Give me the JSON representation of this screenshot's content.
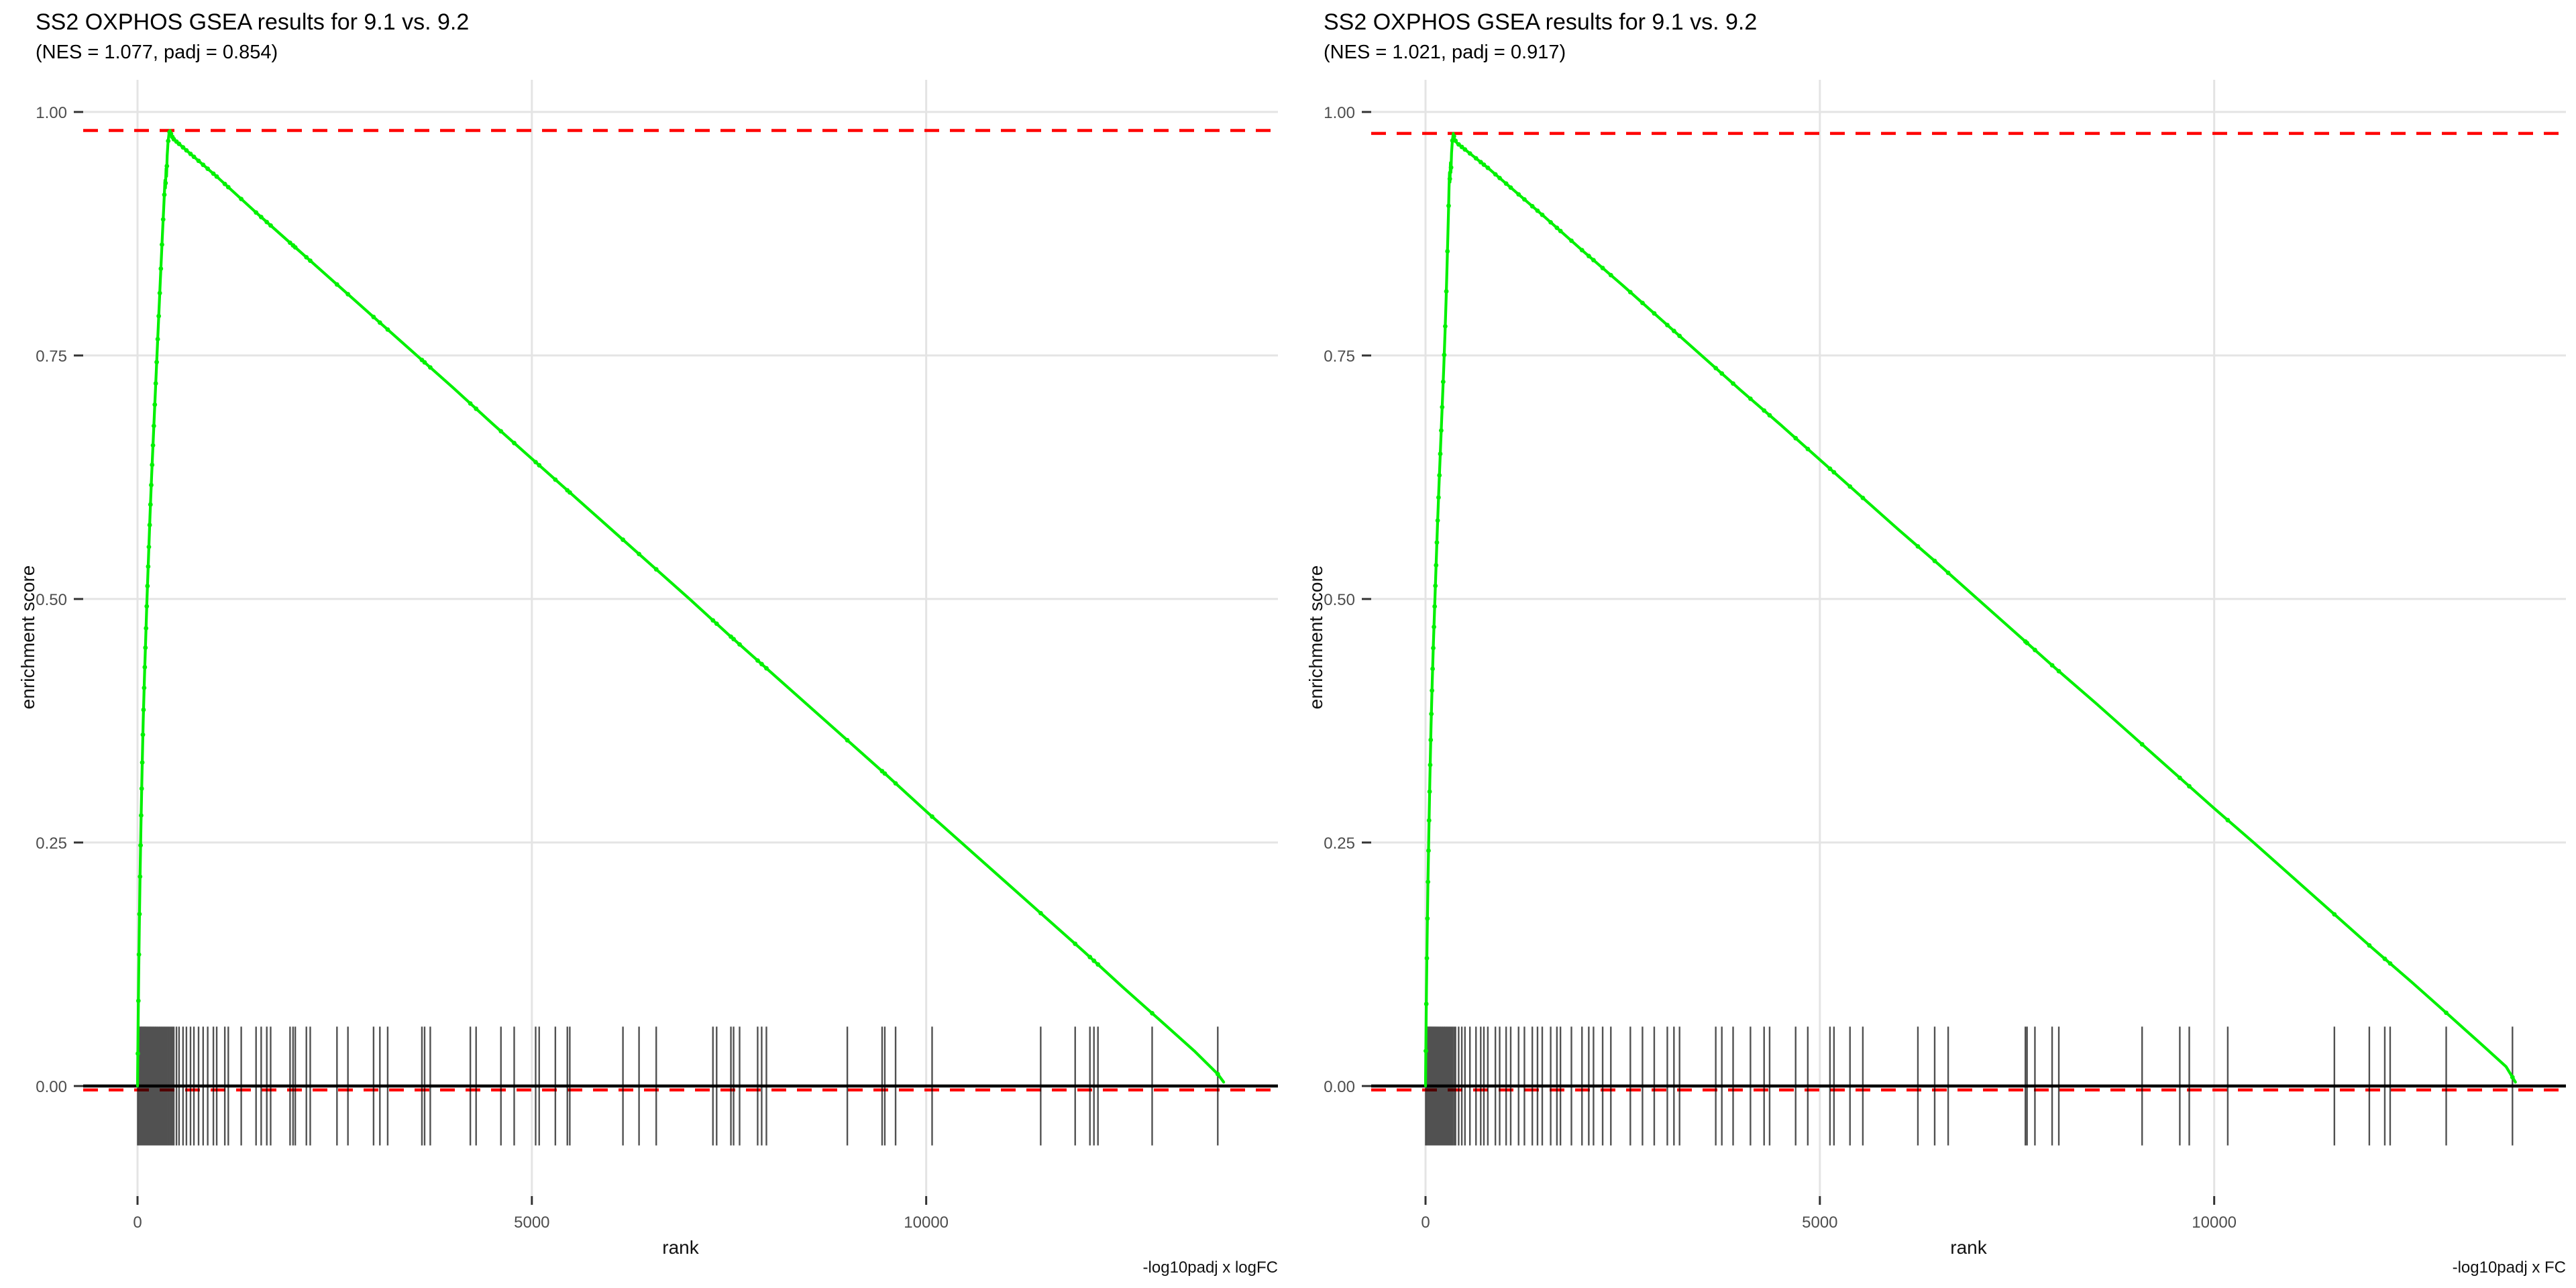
{
  "panels": [
    {
      "title": "SS2 OXPHOS GSEA results for 9.1 vs. 9.2",
      "subtitle": "(NES = 1.077, padj = 0.854)",
      "xlabel": "rank",
      "ylabel": "enrichment score",
      "caption": "-log10padj x logFC"
    },
    {
      "title": "SS2 OXPHOS GSEA results for 9.1 vs. 9.2",
      "subtitle": "(NES = 1.021, padj = 0.917)",
      "xlabel": "rank",
      "ylabel": "enrichment score",
      "caption": "-log10padj x FC"
    }
  ],
  "colors": {
    "curve": "#00F000",
    "dashed_line": "#FF0000",
    "zero_line": "#000000",
    "grid": "#E4E4E4",
    "axis_tick": "#333333",
    "tick_label": "#4D4D4D",
    "rug": "#000000"
  },
  "chart_data": [
    {
      "type": "line",
      "title": "SS2 OXPHOS GSEA results for 9.1 vs. 9.2",
      "subtitle": "(NES = 1.077, padj = 0.854)",
      "caption": "-log10padj x logFC",
      "xlabel": "rank",
      "ylabel": "enrichment score",
      "NES": 1.077,
      "padj": 0.854,
      "x_ticks": [
        0,
        5000,
        10000
      ],
      "y_ticks": [
        0,
        0.25,
        0.5,
        0.75,
        1
      ],
      "xlim": [
        -689,
        14460
      ],
      "ylim": [
        -0.113,
        1.033
      ],
      "grid": "major-only",
      "legend": "none",
      "es_max_line": 0.981,
      "es_min_line": -0.004,
      "zero_line": 0,
      "rug_half_height": 0.061,
      "curve": [
        [
          0,
          0
        ],
        [
          6,
          0.05
        ],
        [
          14,
          0.11
        ],
        [
          22,
          0.16
        ],
        [
          32,
          0.215
        ],
        [
          44,
          0.27
        ],
        [
          58,
          0.325
        ],
        [
          72,
          0.375
        ],
        [
          88,
          0.42
        ],
        [
          104,
          0.46
        ],
        [
          120,
          0.5
        ],
        [
          138,
          0.54
        ],
        [
          158,
          0.585
        ],
        [
          178,
          0.625
        ],
        [
          200,
          0.665
        ],
        [
          222,
          0.705
        ],
        [
          244,
          0.745
        ],
        [
          266,
          0.785
        ],
        [
          288,
          0.825
        ],
        [
          305,
          0.855
        ],
        [
          318,
          0.878
        ],
        [
          330,
          0.898
        ],
        [
          340,
          0.915
        ],
        [
          348,
          0.93
        ],
        [
          354,
          0.922
        ],
        [
          362,
          0.942
        ],
        [
          368,
          0.934
        ],
        [
          376,
          0.955
        ],
        [
          386,
          0.968
        ],
        [
          398,
          0.977
        ],
        [
          412,
          0.981
        ],
        [
          430,
          0.976
        ],
        [
          460,
          0.972
        ],
        [
          600,
          0.962
        ],
        [
          800,
          0.948
        ],
        [
          1000,
          0.934
        ],
        [
          1500,
          0.897
        ],
        [
          2000,
          0.861
        ],
        [
          2500,
          0.825
        ],
        [
          3000,
          0.789
        ],
        [
          3500,
          0.753
        ],
        [
          4000,
          0.717
        ],
        [
          4500,
          0.68
        ],
        [
          5000,
          0.644
        ],
        [
          5500,
          0.608
        ],
        [
          6000,
          0.572
        ],
        [
          6500,
          0.536
        ],
        [
          7000,
          0.5
        ],
        [
          7500,
          0.463
        ],
        [
          8000,
          0.427
        ],
        [
          8500,
          0.391
        ],
        [
          9000,
          0.355
        ],
        [
          9500,
          0.319
        ],
        [
          10000,
          0.282
        ],
        [
          10500,
          0.246
        ],
        [
          11000,
          0.21
        ],
        [
          11500,
          0.174
        ],
        [
          12000,
          0.138
        ],
        [
          12500,
          0.101
        ],
        [
          13000,
          0.065
        ],
        [
          13400,
          0.036
        ],
        [
          13700,
          0.012
        ],
        [
          13772,
          0.004
        ]
      ],
      "gene_ranks": [
        4,
        11,
        18,
        25,
        32,
        39,
        46,
        53,
        60,
        68,
        76,
        84,
        92,
        100,
        108,
        117,
        126,
        135,
        144,
        154,
        164,
        174,
        185,
        196,
        207,
        219,
        231,
        243,
        256,
        269,
        282,
        296,
        310,
        325,
        340,
        356,
        372,
        389,
        406,
        424,
        442,
        460,
        494,
        527,
        577,
        620,
        672,
        715,
        774,
        832,
        890,
        962,
        1004,
        1107,
        1151,
        1315,
        1503,
        1568,
        1639,
        1688,
        1934,
        1972,
        2000,
        2141,
        2190,
        2529,
        2668,
        2993,
        3073,
        3172,
        3606,
        3640,
        3712,
        4220,
        4293,
        4608,
        4776,
        5048,
        5093,
        5298,
        5450,
        5481,
        6155,
        6359,
        6577,
        7296,
        7343,
        7524,
        7558,
        7634,
        7863,
        7914,
        7974,
        9000,
        9441,
        9475,
        9612,
        10075,
        11452,
        11889,
        12076,
        12127,
        12178,
        12865,
        13697
      ]
    },
    {
      "type": "line",
      "title": "SS2 OXPHOS GSEA results for 9.1 vs. 9.2",
      "subtitle": "(NES = 1.021, padj = 0.917)",
      "caption": "-log10padj x FC",
      "xlabel": "rank",
      "ylabel": "enrichment score",
      "NES": 1.021,
      "padj": 0.917,
      "x_ticks": [
        0,
        5000,
        10000
      ],
      "y_ticks": [
        0,
        0.25,
        0.5,
        0.75,
        1
      ],
      "xlim": [
        -689,
        14460
      ],
      "ylim": [
        -0.113,
        1.033
      ],
      "grid": "major-only",
      "legend": "none",
      "es_max_line": 0.978,
      "es_min_line": -0.004,
      "zero_line": 0,
      "rug_half_height": 0.061,
      "curve": [
        [
          0,
          0
        ],
        [
          5,
          0.045
        ],
        [
          12,
          0.1
        ],
        [
          20,
          0.15
        ],
        [
          30,
          0.205
        ],
        [
          42,
          0.26
        ],
        [
          55,
          0.315
        ],
        [
          70,
          0.37
        ],
        [
          85,
          0.415
        ],
        [
          100,
          0.455
        ],
        [
          115,
          0.49
        ],
        [
          132,
          0.53
        ],
        [
          150,
          0.572
        ],
        [
          170,
          0.615
        ],
        [
          190,
          0.655
        ],
        [
          210,
          0.695
        ],
        [
          230,
          0.735
        ],
        [
          248,
          0.775
        ],
        [
          262,
          0.81
        ],
        [
          274,
          0.845
        ],
        [
          284,
          0.875
        ],
        [
          292,
          0.9
        ],
        [
          298,
          0.922
        ],
        [
          304,
          0.938
        ],
        [
          310,
          0.928
        ],
        [
          316,
          0.948
        ],
        [
          322,
          0.938
        ],
        [
          330,
          0.958
        ],
        [
          340,
          0.97
        ],
        [
          352,
          0.978
        ],
        [
          368,
          0.972
        ],
        [
          400,
          0.968
        ],
        [
          600,
          0.955
        ],
        [
          800,
          0.942
        ],
        [
          1000,
          0.928
        ],
        [
          1500,
          0.893
        ],
        [
          2000,
          0.857
        ],
        [
          2500,
          0.822
        ],
        [
          3000,
          0.786
        ],
        [
          3500,
          0.75
        ],
        [
          4000,
          0.714
        ],
        [
          4500,
          0.679
        ],
        [
          5000,
          0.643
        ],
        [
          5500,
          0.607
        ],
        [
          6000,
          0.571
        ],
        [
          6500,
          0.536
        ],
        [
          7000,
          0.5
        ],
        [
          7500,
          0.464
        ],
        [
          8000,
          0.428
        ],
        [
          8500,
          0.393
        ],
        [
          9000,
          0.357
        ],
        [
          9500,
          0.321
        ],
        [
          10000,
          0.285
        ],
        [
          10500,
          0.25
        ],
        [
          11000,
          0.214
        ],
        [
          11500,
          0.178
        ],
        [
          12000,
          0.142
        ],
        [
          12500,
          0.107
        ],
        [
          13000,
          0.071
        ],
        [
          13400,
          0.042
        ],
        [
          13700,
          0.02
        ],
        [
          13820,
          0.004
        ]
      ],
      "gene_ranks": [
        4,
        10,
        17,
        24,
        31,
        38,
        45,
        52,
        59,
        66,
        74,
        82,
        90,
        98,
        107,
        116,
        125,
        134,
        144,
        154,
        165,
        176,
        187,
        199,
        211,
        224,
        237,
        250,
        264,
        278,
        293,
        308,
        324,
        341,
        360,
        380,
        420,
        460,
        500,
        563,
        640,
        700,
        740,
        790,
        886,
        940,
        1022,
        1080,
        1180,
        1254,
        1354,
        1420,
        1480,
        1587,
        1666,
        1711,
        1850,
        1984,
        2070,
        2130,
        2246,
        2350,
        2597,
        2751,
        2900,
        3066,
        3150,
        3221,
        3680,
        3757,
        3900,
        4120,
        4293,
        4363,
        4693,
        4847,
        5128,
        5179,
        5382,
        5545,
        6243,
        6456,
        6627,
        7606,
        7627,
        7727,
        7945,
        8030,
        9086,
        9564,
        9684,
        10172,
        11524,
        11967,
        12163,
        12231,
        12942,
        13782
      ]
    }
  ]
}
